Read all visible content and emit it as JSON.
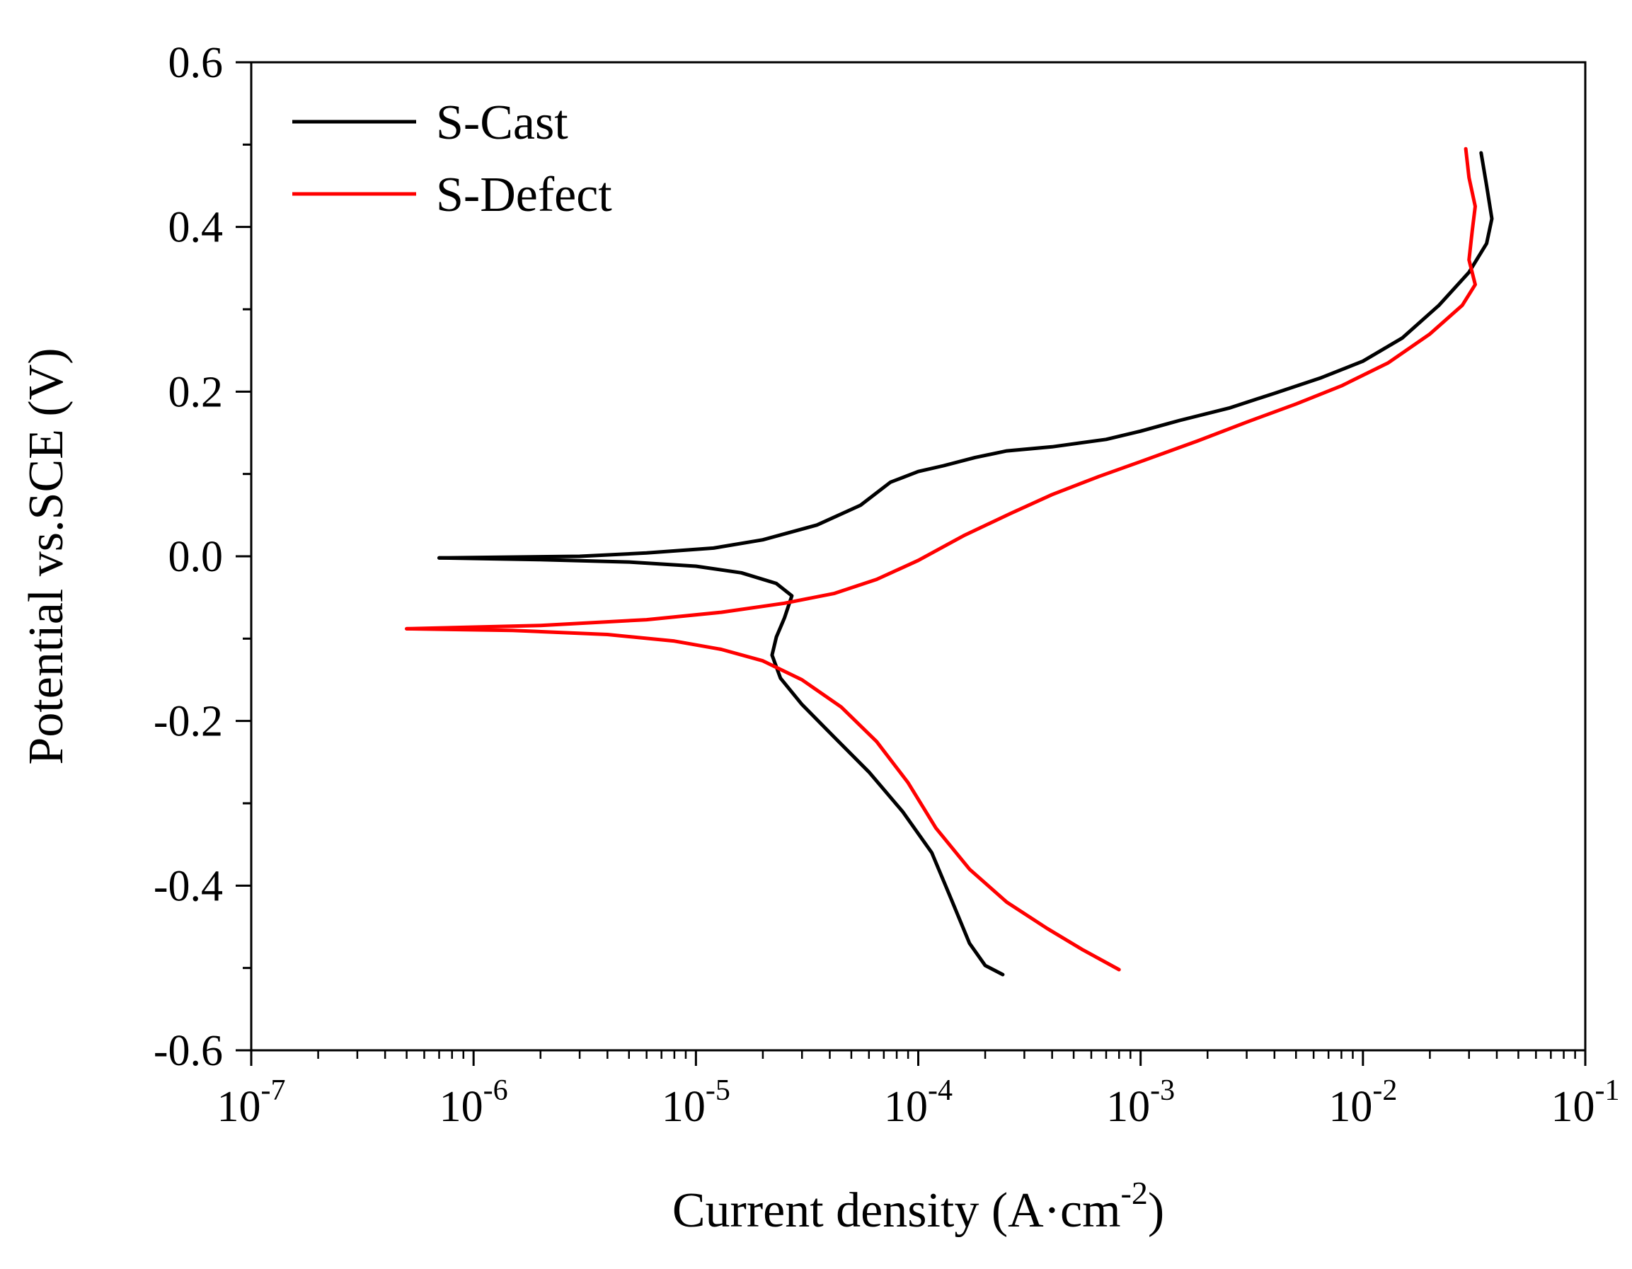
{
  "chart_data": {
    "type": "line",
    "title": "",
    "xlabel": "Current density (A·cm",
    "xlabel_sup": "-2",
    "xlabel_end": ")",
    "ylabel": "Potential vs.SCE (V)",
    "xscale": "log",
    "xlim": [
      1e-07,
      0.1
    ],
    "ylim": [
      -0.6,
      0.6
    ],
    "x_ticks": [
      {
        "base": "10",
        "exp": "-7"
      },
      {
        "base": "10",
        "exp": "-6"
      },
      {
        "base": "10",
        "exp": "-5"
      },
      {
        "base": "10",
        "exp": "-4"
      },
      {
        "base": "10",
        "exp": "-3"
      },
      {
        "base": "10",
        "exp": "-2"
      },
      {
        "base": "10",
        "exp": "-1"
      }
    ],
    "y_ticks": [
      "-0.6",
      "-0.4",
      "-0.2",
      "0.0",
      "0.2",
      "0.4",
      "0.6"
    ],
    "legend_position": "top-left",
    "series": [
      {
        "name": "S-Cast",
        "color": "#000000",
        "points": [
          [
            7e-07,
            -0.002
          ],
          [
            2e-06,
            -0.004
          ],
          [
            5e-06,
            -0.007
          ],
          [
            1e-05,
            -0.012
          ],
          [
            1.6e-05,
            -0.02
          ],
          [
            2.3e-05,
            -0.033
          ],
          [
            2.7e-05,
            -0.048
          ],
          [
            2.5e-05,
            -0.075
          ],
          [
            2.3e-05,
            -0.098
          ],
          [
            2.2e-05,
            -0.12
          ],
          [
            2.4e-05,
            -0.148
          ],
          [
            3e-05,
            -0.18
          ],
          [
            4.2e-05,
            -0.22
          ],
          [
            6e-05,
            -0.262
          ],
          [
            8.5e-05,
            -0.31
          ],
          [
            0.000115,
            -0.36
          ],
          [
            0.00014,
            -0.415
          ],
          [
            0.00017,
            -0.47
          ],
          [
            0.0002,
            -0.497
          ],
          [
            0.00024,
            -0.508
          ]
        ]
      },
      {
        "name": "S-Cast",
        "color": "#000000",
        "points": [
          [
            7e-07,
            -0.002
          ],
          [
            3e-06,
            0.0
          ],
          [
            6e-06,
            0.004
          ],
          [
            1.2e-05,
            0.01
          ],
          [
            2e-05,
            0.02
          ],
          [
            3.5e-05,
            0.038
          ],
          [
            5.5e-05,
            0.062
          ],
          [
            7.5e-05,
            0.09
          ],
          [
            0.0001,
            0.103
          ],
          [
            0.00013,
            0.11
          ],
          [
            0.00018,
            0.12
          ],
          [
            0.00025,
            0.128
          ],
          [
            0.0004,
            0.133
          ],
          [
            0.0007,
            0.142
          ],
          [
            0.001,
            0.152
          ],
          [
            0.0015,
            0.165
          ],
          [
            0.0025,
            0.18
          ],
          [
            0.004,
            0.198
          ],
          [
            0.0065,
            0.217
          ],
          [
            0.01,
            0.237
          ],
          [
            0.015,
            0.265
          ],
          [
            0.022,
            0.305
          ],
          [
            0.03,
            0.345
          ],
          [
            0.036,
            0.38
          ],
          [
            0.038,
            0.41
          ],
          [
            0.036,
            0.45
          ],
          [
            0.034,
            0.49
          ]
        ]
      },
      {
        "name": "S-Defect",
        "color": "#ff0000",
        "points": [
          [
            5e-07,
            -0.088
          ],
          [
            1.5e-06,
            -0.09
          ],
          [
            4e-06,
            -0.095
          ],
          [
            8e-06,
            -0.103
          ],
          [
            1.3e-05,
            -0.113
          ],
          [
            2e-05,
            -0.127
          ],
          [
            3e-05,
            -0.15
          ],
          [
            4.5e-05,
            -0.183
          ],
          [
            6.5e-05,
            -0.225
          ],
          [
            9e-05,
            -0.275
          ],
          [
            0.00012,
            -0.33
          ],
          [
            0.00017,
            -0.38
          ],
          [
            0.00025,
            -0.42
          ],
          [
            0.00038,
            -0.452
          ],
          [
            0.00055,
            -0.478
          ],
          [
            0.0008,
            -0.502
          ]
        ]
      },
      {
        "name": "S-Defect",
        "color": "#ff0000",
        "points": [
          [
            5e-07,
            -0.088
          ],
          [
            2e-06,
            -0.084
          ],
          [
            6e-06,
            -0.077
          ],
          [
            1.3e-05,
            -0.068
          ],
          [
            2.5e-05,
            -0.057
          ],
          [
            4.2e-05,
            -0.045
          ],
          [
            6.5e-05,
            -0.028
          ],
          [
            0.0001,
            -0.005
          ],
          [
            0.00016,
            0.025
          ],
          [
            0.00026,
            0.052
          ],
          [
            0.0004,
            0.075
          ],
          [
            0.00065,
            0.097
          ],
          [
            0.001,
            0.115
          ],
          [
            0.0018,
            0.14
          ],
          [
            0.003,
            0.163
          ],
          [
            0.005,
            0.185
          ],
          [
            0.008,
            0.207
          ],
          [
            0.013,
            0.235
          ],
          [
            0.02,
            0.27
          ],
          [
            0.028,
            0.305
          ],
          [
            0.032,
            0.33
          ],
          [
            0.03,
            0.36
          ],
          [
            0.031,
            0.395
          ],
          [
            0.032,
            0.425
          ],
          [
            0.03,
            0.46
          ],
          [
            0.029,
            0.495
          ]
        ]
      }
    ],
    "legend": [
      {
        "name": "S-Cast",
        "color": "#000000"
      },
      {
        "name": "S-Defect",
        "color": "#ff0000"
      }
    ]
  }
}
